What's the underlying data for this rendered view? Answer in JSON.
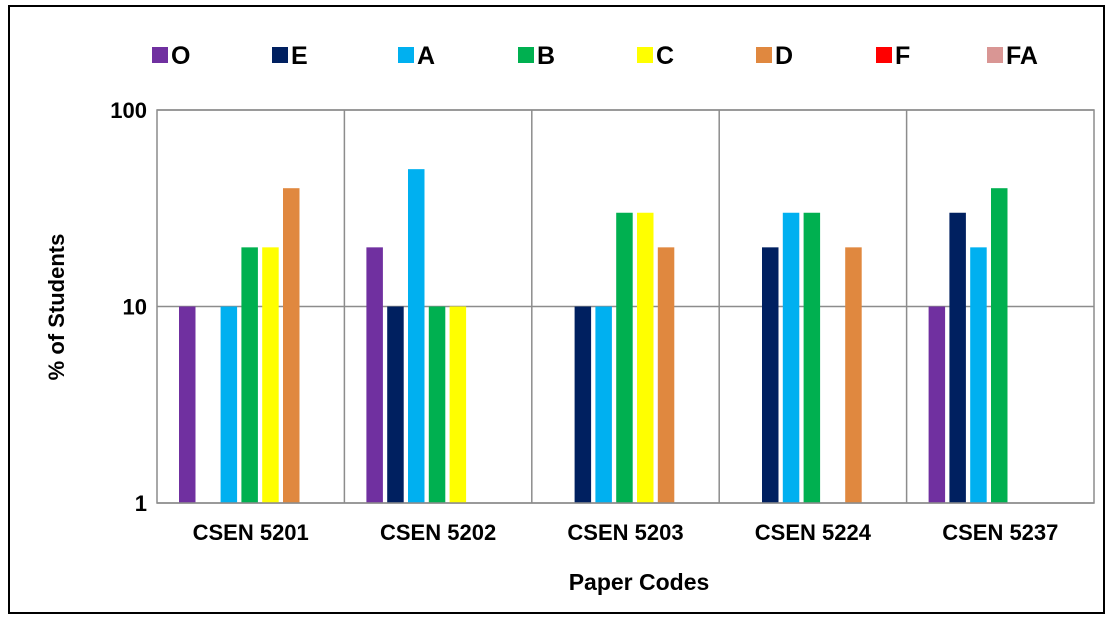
{
  "chart_data": {
    "type": "bar",
    "title": "",
    "xlabel": "Paper Codes",
    "ylabel": "% of Students",
    "yscale": "log",
    "ylim": [
      1,
      100
    ],
    "yticks": [
      1,
      10,
      100
    ],
    "grid": true,
    "legend_position": "top",
    "categories": [
      "CSEN 5201",
      "CSEN 5202",
      "CSEN 5203",
      "CSEN 5224",
      "CSEN 5237"
    ],
    "series": [
      {
        "name": "O",
        "color": "#7030a0",
        "values": [
          10,
          20,
          null,
          null,
          10
        ]
      },
      {
        "name": "E",
        "color": "#002060",
        "values": [
          null,
          10,
          10,
          20,
          30
        ]
      },
      {
        "name": "A",
        "color": "#00b0f0",
        "values": [
          10,
          50,
          10,
          30,
          20
        ]
      },
      {
        "name": "B",
        "color": "#00b050",
        "values": [
          20,
          10,
          30,
          30,
          40
        ]
      },
      {
        "name": "C",
        "color": "#ffff00",
        "values": [
          20,
          10,
          30,
          null,
          null
        ]
      },
      {
        "name": "D",
        "color": "#e0883f",
        "values": [
          40,
          null,
          20,
          20,
          null
        ]
      },
      {
        "name": "F",
        "color": "#ff0000",
        "values": [
          null,
          null,
          null,
          null,
          null
        ]
      },
      {
        "name": "FA",
        "color": "#d99694",
        "values": [
          null,
          null,
          null,
          null,
          null
        ]
      }
    ]
  }
}
